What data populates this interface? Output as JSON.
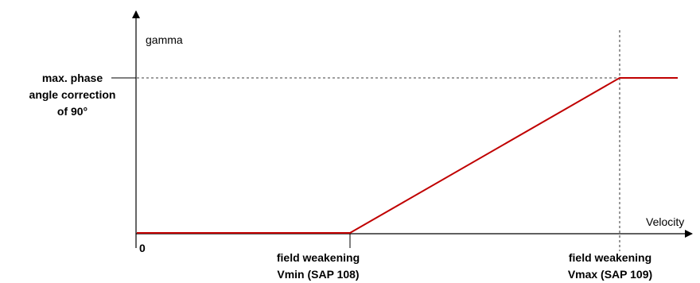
{
  "diagram": {
    "y_axis_label": "gamma",
    "x_axis_label": "Velocity",
    "origin_label": "0",
    "max_label_lines": [
      "max. phase",
      "angle correction",
      "of 90°"
    ],
    "vmin_label_lines": [
      "field weakening",
      "Vmin (SAP 108)"
    ],
    "vmax_label_lines": [
      "field weakening",
      "Vmax (SAP 109)"
    ],
    "colors": {
      "curve": "#c00000",
      "axis": "#000000",
      "guide": "#000000"
    }
  }
}
